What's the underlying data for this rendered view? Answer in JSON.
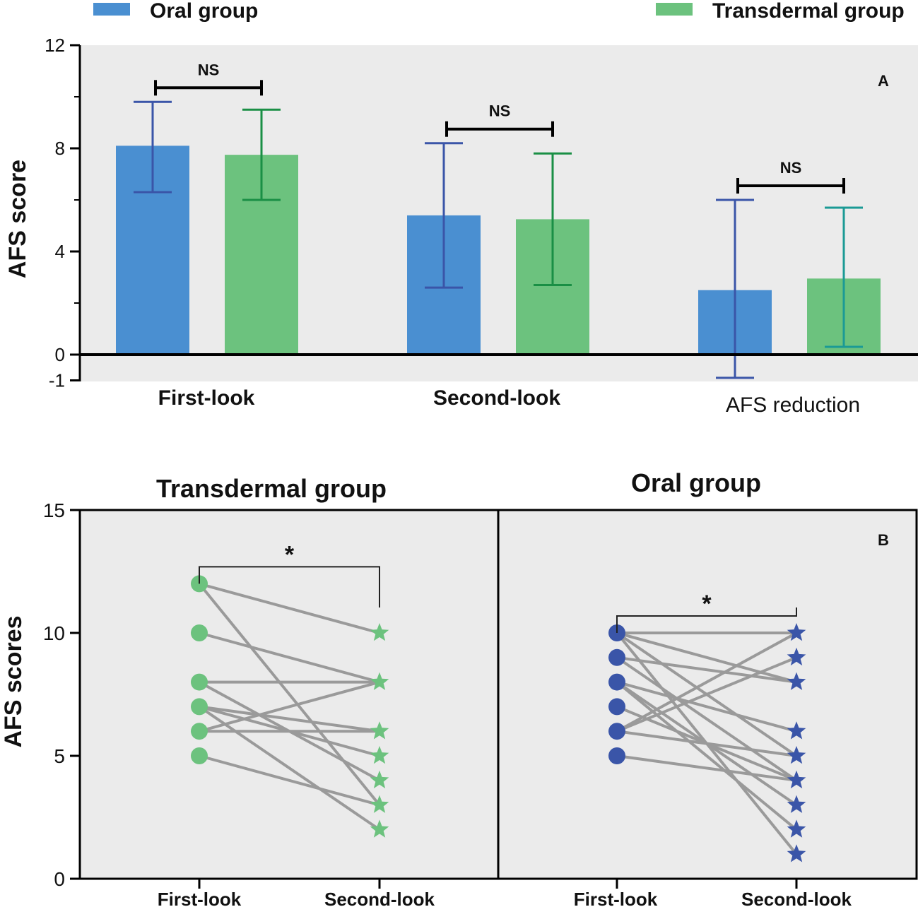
{
  "chart_data": [
    {
      "type": "bar",
      "panel_label": "A",
      "xlabel": "",
      "ylabel": "AFS score",
      "ylim": [
        -1,
        12
      ],
      "yticks": [
        "12",
        "8",
        "4",
        "0",
        "-1"
      ],
      "categories": [
        "First-look",
        "Second-look",
        "AFS reduction"
      ],
      "series": [
        {
          "name": "Oral group",
          "color": "#4a8fd1",
          "errcolor": "#3a55a8",
          "values": [
            8.1,
            5.4,
            2.5
          ],
          "err_low": [
            6.3,
            2.6,
            -0.9
          ],
          "err_high": [
            9.8,
            8.2,
            6.0
          ]
        },
        {
          "name": "Transdermal group",
          "color": "#6cc27e",
          "errcolor": "#1a8f45",
          "errcolor_last": "#1b9a95",
          "values": [
            7.75,
            5.25,
            2.95
          ],
          "err_low": [
            6.0,
            2.7,
            0.3
          ],
          "err_high": [
            9.5,
            7.8,
            5.7
          ]
        }
      ],
      "significance": [
        "NS",
        "NS",
        "NS"
      ],
      "legend": {
        "oral": "Oral group",
        "transdermal": "Transdermal group",
        "placement": "top"
      }
    },
    {
      "type": "scatter",
      "panel_label": "B",
      "ylabel": "AFS scores",
      "ylim": [
        0,
        15
      ],
      "yticks": [
        "15",
        "10",
        "5",
        "0"
      ],
      "panels": [
        {
          "title": "Transdermal group",
          "categories": [
            "First-look",
            "Second-look"
          ],
          "marker_color": "#6cc27e",
          "pairs": [
            [
              12,
              10
            ],
            [
              12,
              3
            ],
            [
              10,
              8
            ],
            [
              8,
              8
            ],
            [
              8,
              4
            ],
            [
              7,
              6
            ],
            [
              7,
              5
            ],
            [
              7,
              2
            ],
            [
              6,
              6
            ],
            [
              6,
              8
            ],
            [
              5,
              3
            ]
          ],
          "significance": "*"
        },
        {
          "title": "Oral group",
          "categories": [
            "First-look",
            "Second-look"
          ],
          "marker_color": "#3a55a8",
          "pairs": [
            [
              10,
              10
            ],
            [
              10,
              8
            ],
            [
              10,
              5
            ],
            [
              10,
              1
            ],
            [
              9,
              4
            ],
            [
              9,
              8
            ],
            [
              8,
              6
            ],
            [
              8,
              3
            ],
            [
              8,
              2
            ],
            [
              7,
              4
            ],
            [
              6,
              9
            ],
            [
              6,
              10
            ],
            [
              6,
              5
            ],
            [
              5,
              4
            ]
          ],
          "significance": "*"
        }
      ]
    }
  ]
}
